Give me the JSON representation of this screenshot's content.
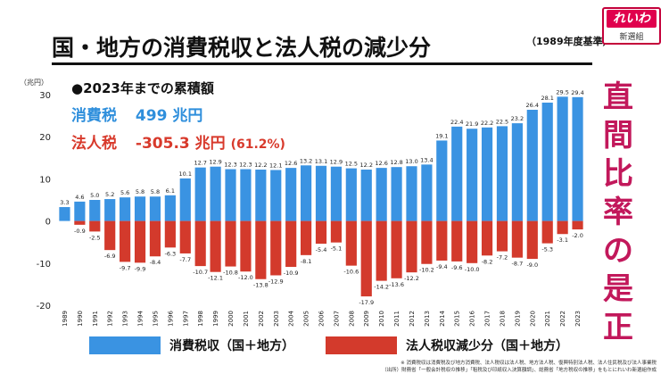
{
  "header": {
    "title": "国・地方の消費税収と法人税の減少分",
    "subtitle": "（1989年度基準）"
  },
  "logo": {
    "main": "れいわ",
    "sub": "新選組"
  },
  "side_text": [
    "直",
    "間",
    "比",
    "率",
    "の",
    "是",
    "正"
  ],
  "summary": {
    "heading": "●2023年までの累積額",
    "consumption_label": "消費税",
    "consumption_value": "499 兆円",
    "corporate_label": "法人税",
    "corporate_value": "-305.3 兆円",
    "corporate_pct": "(61.2%)"
  },
  "footnote": {
    "line1": "※ 消費税収は消費税及び地方消費税、法人税収は法人税、地方法人税、復興特別法人税、法人住民税及び法人事業税",
    "line2": "（出所）財務省「一般会計税収の推移」「租税及び印紙収入決算額調」、総務省「地方税収の推移」をもとにれいわ新選組作成"
  },
  "colors": {
    "consumption": "#3a93e2",
    "corporate": "#d33a2c",
    "side_text": "#c2185b",
    "logo": "#e0004d"
  },
  "chart_data": {
    "type": "bar",
    "ylabel": "（兆円）",
    "ylim": [
      -20,
      30
    ],
    "yticks": [
      30,
      20,
      10,
      0,
      -10,
      -20
    ],
    "grid": false,
    "legend_position": "bottom",
    "categories": [
      "1989",
      "1990",
      "1991",
      "1992",
      "1993",
      "1994",
      "1995",
      "1996",
      "1997",
      "1998",
      "1999",
      "2000",
      "2001",
      "2002",
      "2003",
      "2004",
      "2005",
      "2006",
      "2007",
      "2008",
      "2009",
      "2010",
      "2011",
      "2012",
      "2013",
      "2014",
      "2015",
      "2016",
      "2017",
      "2018",
      "2019",
      "2020",
      "2021",
      "2022",
      "2023"
    ],
    "series": [
      {
        "name": "消費税収（国＋地方）",
        "values": [
          3.3,
          4.6,
          5.0,
          5.2,
          5.6,
          5.8,
          5.8,
          6.1,
          10.1,
          12.7,
          12.9,
          12.3,
          12.3,
          12.2,
          12.1,
          12.6,
          13.2,
          13.1,
          12.9,
          12.5,
          12.2,
          12.6,
          12.8,
          13.0,
          13.4,
          19.1,
          22.4,
          21.9,
          22.2,
          22.5,
          23.2,
          26.4,
          28.1,
          29.5,
          29.4
        ],
        "labels": [
          "3.3",
          "4.6",
          "5.0",
          "5.2",
          "5.6",
          "5.8",
          "5.8",
          "6.1",
          "10.1",
          "12.7",
          "12.9",
          "12.3",
          "12.3",
          "12.2",
          "12.1",
          "12.6",
          "13.2",
          "13.1",
          "12.9",
          "12.5",
          "12.2",
          "12.6",
          "12.8",
          "13.0",
          "13.4",
          "19.1",
          "22.4",
          "21.9",
          "22.2",
          "22.5",
          "23.2",
          "26.4",
          "28.1",
          "29.5",
          "29.4"
        ]
      },
      {
        "name": "法人税収減少分（国＋地方）",
        "values": [
          0,
          -0.9,
          -2.5,
          -6.9,
          -9.7,
          -9.9,
          -8.4,
          -6.3,
          -7.7,
          -10.7,
          -12.1,
          -10.8,
          -12.0,
          -13.8,
          -12.9,
          -10.9,
          -8.1,
          -5.4,
          -5.1,
          -10.6,
          -17.9,
          -14.2,
          -13.6,
          -12.2,
          -10.2,
          -9.4,
          -9.6,
          -10.0,
          -8.2,
          -7.2,
          -8.7,
          -9.0,
          -5.3,
          -3.1,
          -2.0
        ],
        "labels": [
          "",
          "-0.9",
          "-2.5",
          "-6.9",
          "-9.7",
          "-9.9",
          "-8.4",
          "-6.3",
          "-7.7",
          "-10.7",
          "-12.1",
          "-10.8",
          "-12.0",
          "-13.8",
          "-12.9",
          "-10.9",
          "-8.1",
          "-5.4",
          "-5.1",
          "-10.6",
          "-17.9",
          "-14.2",
          "-13.6",
          "-12.2",
          "-10.2",
          "-9.4",
          "-9.6",
          "-10.0",
          "-8.2",
          "-7.2",
          "-8.7",
          "-9.0",
          "-5.3",
          "-3.1",
          "-2.0"
        ]
      }
    ]
  }
}
